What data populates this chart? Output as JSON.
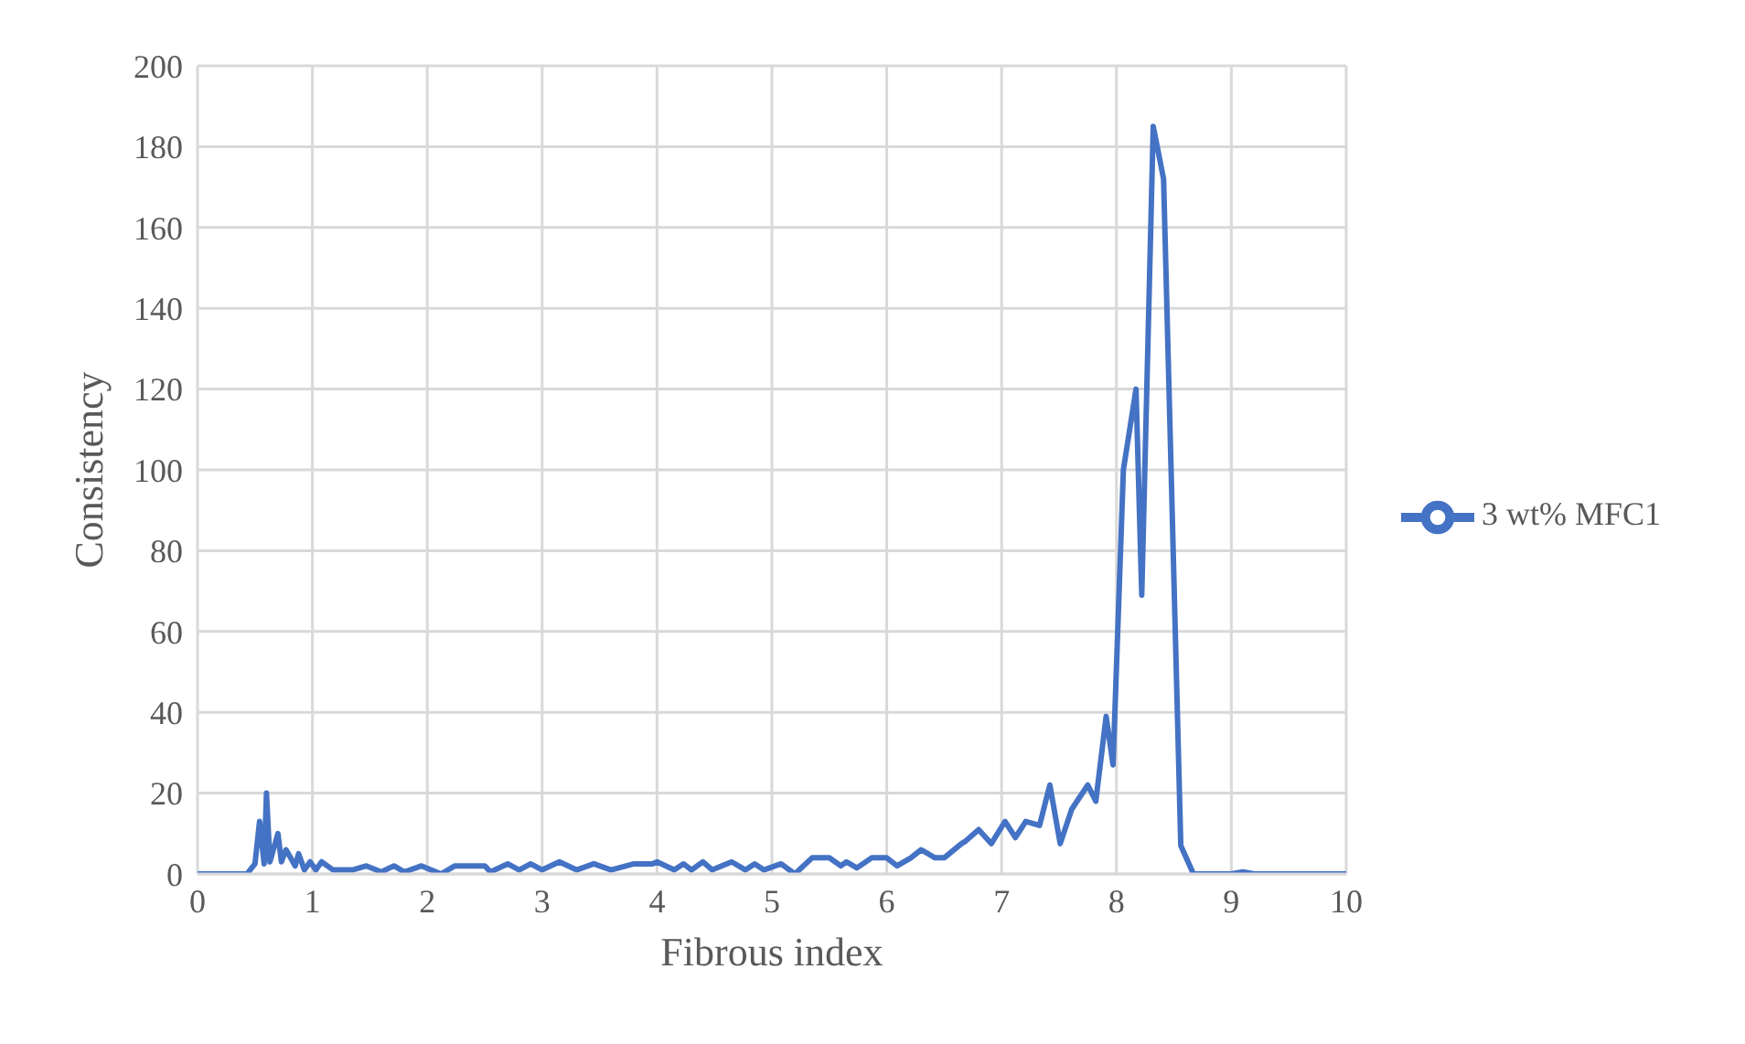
{
  "chart_data": {
    "type": "line",
    "xlabel": "Fibrous index",
    "ylabel": "Consistency",
    "xlim": [
      0,
      10
    ],
    "xticks": [
      0,
      1,
      2,
      3,
      4,
      5,
      6,
      7,
      8,
      9,
      10
    ],
    "ylim": [
      0,
      200
    ],
    "yticks": [
      0,
      20,
      40,
      60,
      80,
      100,
      120,
      140,
      160,
      180,
      200
    ],
    "grid": true,
    "legend": "right",
    "marker": "none",
    "line_style": "solid",
    "series": [
      {
        "name": "3 wt% MFC1",
        "color": "#4472c4",
        "x": [
          0,
          0.43,
          0.5,
          0.54,
          0.58,
          0.6,
          0.63,
          0.7,
          0.73,
          0.77,
          0.81,
          0.85,
          0.88,
          0.93,
          0.98,
          1.03,
          1.08,
          1.18,
          1.35,
          1.47,
          1.6,
          1.71,
          1.8,
          1.95,
          2.12,
          2.24,
          2.5,
          2.55,
          2.7,
          2.8,
          2.9,
          3.0,
          3.15,
          3.3,
          3.45,
          3.6,
          3.8,
          3.96,
          4.0,
          4.15,
          4.23,
          4.3,
          4.4,
          4.48,
          4.65,
          4.77,
          4.85,
          4.93,
          5.08,
          5.2,
          5.35,
          5.5,
          5.6,
          5.65,
          5.74,
          5.87,
          6.0,
          6.09,
          6.21,
          6.3,
          6.42,
          6.5,
          6.65,
          6.68,
          6.8,
          6.91,
          7.03,
          7.12,
          7.21,
          7.33,
          7.42,
          7.51,
          7.61,
          7.75,
          7.82,
          7.91,
          7.97,
          8.06,
          8.17,
          8.22,
          8.32,
          8.41,
          8.56,
          8.67,
          9.0,
          9.1,
          9.2,
          10
        ],
        "values": [
          0,
          0,
          2.5,
          13,
          2.5,
          20,
          3,
          10,
          3,
          6,
          4,
          2,
          5,
          1,
          3,
          1,
          3,
          1,
          1,
          2,
          0.5,
          2,
          0.5,
          2,
          0,
          2,
          2,
          0.5,
          2.5,
          1,
          2.5,
          1,
          3,
          1,
          2.5,
          1,
          2.5,
          2.5,
          3,
          1,
          2.5,
          1,
          3,
          1,
          3,
          1,
          2.5,
          1,
          2.5,
          0,
          4,
          4,
          2,
          3,
          1.5,
          4,
          4,
          2,
          4,
          6,
          4,
          4,
          7.5,
          8,
          11,
          7.5,
          13,
          9,
          13,
          12,
          22,
          7.5,
          16,
          22,
          18,
          39,
          27,
          100,
          120,
          69,
          185,
          172,
          7,
          0,
          0,
          0.5,
          0,
          0
        ]
      }
    ]
  }
}
